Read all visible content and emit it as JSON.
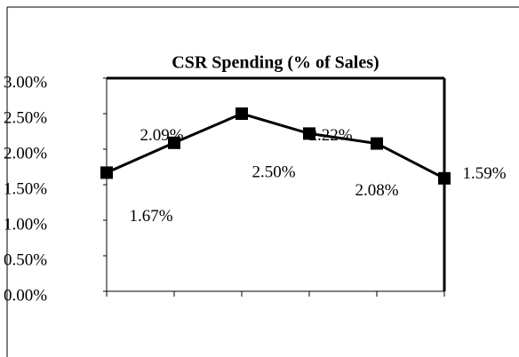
{
  "chart_data": {
    "type": "line",
    "title": "CSR Spending (% of Sales)",
    "categories": [
      null,
      null,
      null,
      null,
      null,
      null
    ],
    "values": [
      1.67,
      2.09,
      2.5,
      2.22,
      2.08,
      1.59
    ],
    "value_labels": [
      "1.67%",
      "2.09%",
      "2.50%",
      "2.22%",
      "2.08%",
      "1.59%"
    ],
    "color": "#000000",
    "ylim": [
      0,
      3
    ],
    "yticks": [
      {
        "value": 0,
        "label": "0.00%"
      },
      {
        "value": 0.5,
        "label": "0.50%"
      },
      {
        "value": 1,
        "label": "1.00%"
      },
      {
        "value": 1.5,
        "label": "1.50%"
      },
      {
        "value": 2,
        "label": "2.00%"
      },
      {
        "value": 2.5,
        "label": "2.50%"
      },
      {
        "value": 3,
        "label": "3.00%"
      }
    ]
  }
}
